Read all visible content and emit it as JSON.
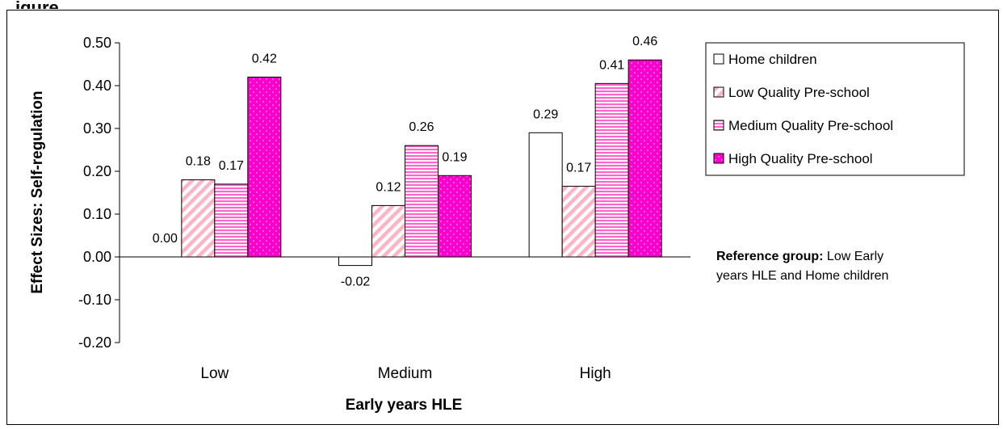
{
  "page": {
    "title_fragment": "igure"
  },
  "chart_data": {
    "type": "bar",
    "title": "",
    "xlabel": "Early years HLE",
    "ylabel": "Effect Sizes: Self-regulation",
    "categories": [
      "Low",
      "Medium",
      "High"
    ],
    "ylim": [
      -0.2,
      0.5
    ],
    "yticks": [
      "0.50",
      "0.40",
      "0.30",
      "0.20",
      "0.10",
      "0.00",
      "-0.10",
      "-0.20"
    ],
    "grid": false,
    "legend_position": "right",
    "series": [
      {
        "name": "Home children",
        "values": [
          0.0,
          -0.02,
          0.29
        ],
        "labels": [
          "0.00",
          "-0.02",
          "0.29"
        ],
        "fill": "#ffffff",
        "pattern": "none"
      },
      {
        "name": "Low Quality Pre-school",
        "values": [
          0.18,
          0.12,
          0.165
        ],
        "labels": [
          "0.18",
          "0.12",
          "0.17"
        ],
        "fill": "#ffb3c6",
        "pattern": "diagonal-stripes"
      },
      {
        "name": "Medium Quality Pre-school",
        "values": [
          0.17,
          0.26,
          0.405
        ],
        "labels": [
          "0.17",
          "0.26",
          "0.41"
        ],
        "fill": "#ff66cc",
        "pattern": "horizontal-stripes"
      },
      {
        "name": "High Quality Pre-school",
        "values": [
          0.42,
          0.19,
          0.46
        ],
        "labels": [
          "0.42",
          "0.19",
          "0.46"
        ],
        "fill": "#ff00cc",
        "pattern": "dots"
      }
    ],
    "annotation": {
      "bold": "Reference group:",
      "text": " Low Early years HLE and Home children"
    }
  }
}
